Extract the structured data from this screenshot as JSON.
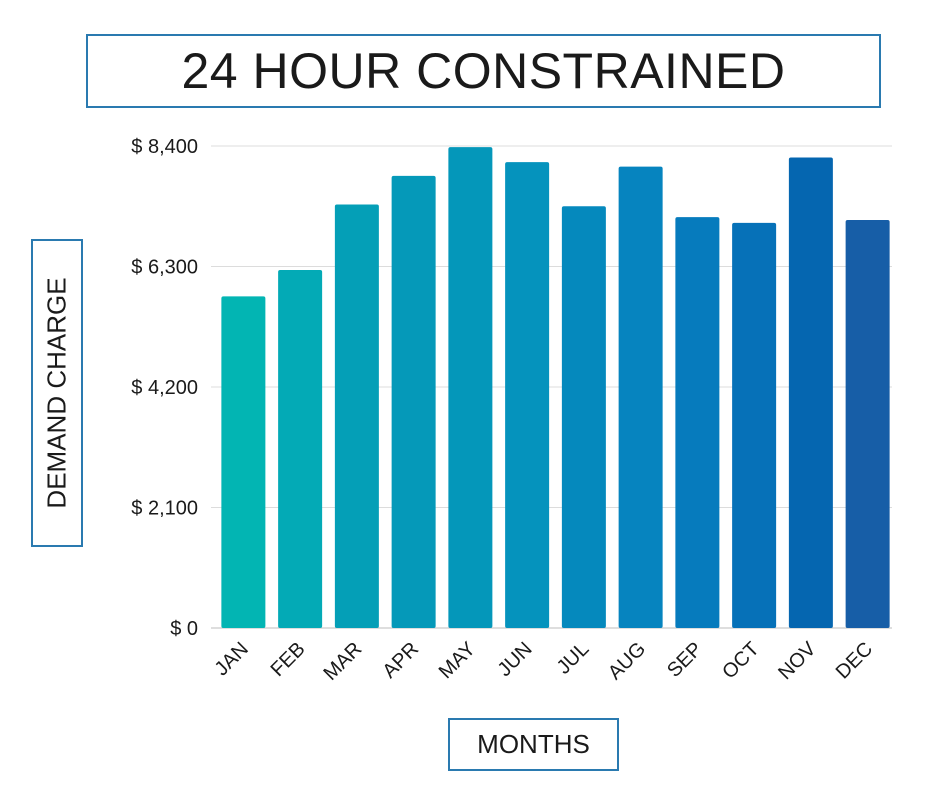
{
  "chart_data": {
    "type": "bar",
    "title": "24 HOUR CONSTRAINED",
    "xlabel": "MONTHS",
    "ylabel": "DEMAND CHARGE",
    "categories": [
      "JAN",
      "FEB",
      "MAR",
      "APR",
      "MAY",
      "JUN",
      "JUL",
      "AUG",
      "SEP",
      "OCT",
      "NOV",
      "DEC"
    ],
    "values": [
      5780,
      6240,
      7380,
      7880,
      8380,
      8120,
      7350,
      8040,
      7160,
      7060,
      8200,
      7110
    ],
    "ylim": [
      0,
      8400
    ],
    "yticks": [
      0,
      2100,
      4200,
      6300,
      8400
    ],
    "ytick_labels": [
      "$ 0",
      "$ 2,100",
      "$ 4,200",
      "$ 6,300",
      "$ 8,400"
    ],
    "grid": true,
    "legend": "none",
    "colors": [
      "#02b5b3",
      "#03aab6",
      "#049fb7",
      "#0599b9",
      "#0497ba",
      "#0593bd",
      "#0589bd",
      "#0684bf",
      "#067bbd",
      "#0671b8",
      "#0566b0",
      "#175ea7"
    ]
  }
}
